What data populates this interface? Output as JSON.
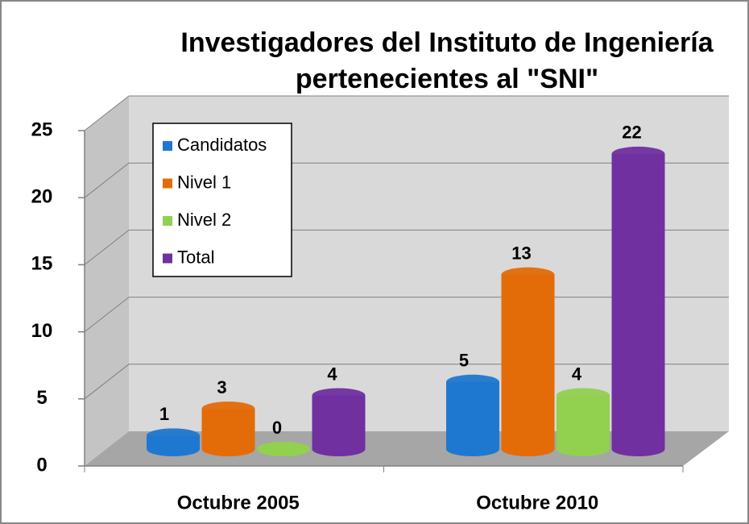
{
  "chart_data": {
    "type": "bar3d",
    "title": [
      "Investigadores del Instituto de Ingeniería",
      "pertenecientes al \"SNI\""
    ],
    "categories": [
      "Octubre 2005",
      "Octubre 2010"
    ],
    "series": [
      {
        "name": "Candidatos",
        "color": "#1f78cf",
        "values": [
          1,
          5
        ]
      },
      {
        "name": "Nivel 1",
        "color": "#e36c09",
        "values": [
          3,
          13
        ]
      },
      {
        "name": "Nivel 2",
        "color": "#92d050",
        "values": [
          0,
          4
        ]
      },
      {
        "name": "Total",
        "color": "#7030a0",
        "values": [
          4,
          22
        ]
      }
    ],
    "ylim": [
      0,
      25
    ],
    "yticks": [
      0,
      5,
      10,
      15,
      20,
      25
    ],
    "grid": true,
    "legend": "upper left"
  }
}
